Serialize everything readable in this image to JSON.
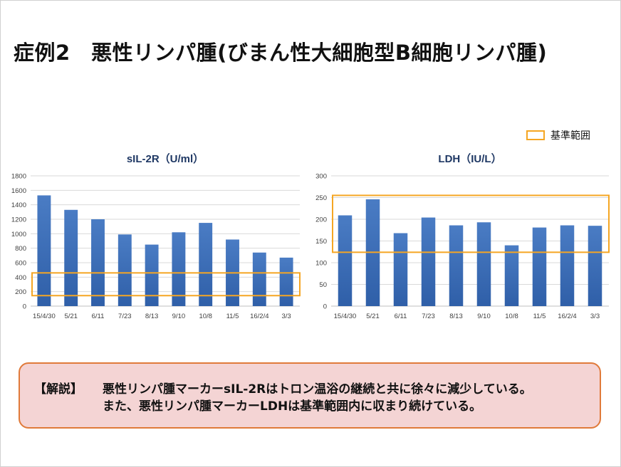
{
  "slide": {
    "title": "症例2　悪性リンパ腫(びまん性大細胞型B細胞リンパ腫)"
  },
  "legend": {
    "label": "基準範囲",
    "color": "#f5a623"
  },
  "note": {
    "label": "【解説】",
    "line1": "悪性リンパ腫マーカーsIL-2Rはトロン温浴の継続と共に徐々に減少している。",
    "line2": "また、悪性リンパ腫マーカーLDHは基準範囲内に収まり続けている。"
  },
  "colors": {
    "bar_top": "#4a7cc4",
    "bar_bottom": "#2f5fa8",
    "grid": "#d9d9d9",
    "reference": "#f5a623",
    "note_bg": "#f4d4d4",
    "note_border": "#e07a3a"
  },
  "chart_data": [
    {
      "type": "bar",
      "title": "sIL-2R（U/ml）",
      "categories": [
        "15/4/30",
        "5/21",
        "6/11",
        "7/23",
        "8/13",
        "9/10",
        "10/8",
        "11/5",
        "16/2/4",
        "3/3"
      ],
      "values": [
        1530,
        1330,
        1200,
        990,
        850,
        1020,
        1150,
        920,
        740,
        670
      ],
      "ylim": [
        0,
        1800
      ],
      "yticks": [
        0,
        200,
        400,
        600,
        800,
        1000,
        1200,
        1400,
        1600,
        1800
      ],
      "reference_range": [
        145,
        459
      ],
      "grid": true
    },
    {
      "type": "bar",
      "title": "LDH（IU/L）",
      "categories": [
        "15/4/30",
        "5/21",
        "6/11",
        "7/23",
        "8/13",
        "9/10",
        "10/8",
        "11/5",
        "16/2/4",
        "3/3"
      ],
      "values": [
        209,
        246,
        168,
        204,
        186,
        193,
        140,
        181,
        186,
        185
      ],
      "ylim": [
        0,
        300
      ],
      "yticks": [
        0,
        50,
        100,
        150,
        200,
        250,
        300
      ],
      "reference_range": [
        124,
        255
      ],
      "grid": true
    }
  ]
}
